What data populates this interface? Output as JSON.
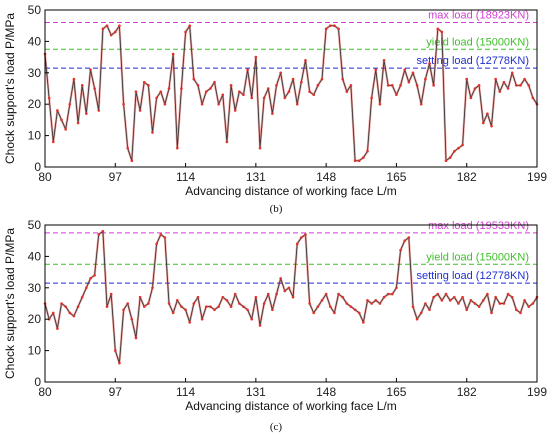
{
  "colors": {
    "series_line": "#3a3a3a",
    "series_marker": "#e0322b",
    "max_load": "#d23fd2",
    "yield_load": "#3fbf2a",
    "setting_load": "#1f2fd0"
  },
  "chart_data": [
    {
      "id": "b",
      "type": "line",
      "caption": "(b)",
      "xlabel": "Advancing distance of working face L/m",
      "ylabel": "Chock support's load   P/MPa",
      "xlim": [
        80,
        199
      ],
      "ylim": [
        0,
        50
      ],
      "xticks": [
        80,
        97,
        114,
        131,
        148,
        165,
        182,
        199
      ],
      "yticks": [
        0,
        10,
        20,
        30,
        40,
        50
      ],
      "reference_lines": [
        {
          "label": "max load (18923KN)",
          "value": 46,
          "color": "#d23fd2"
        },
        {
          "label": "yield load (15000KN)",
          "value": 37.5,
          "color": "#3fbf2a"
        },
        {
          "label": "setting load (12778KN)",
          "value": 31.5,
          "color": "#1f2fd0"
        }
      ],
      "series": [
        {
          "x": [
            80,
            81,
            82,
            83,
            84,
            85,
            86,
            87,
            88,
            89,
            90,
            91,
            92,
            93,
            94,
            95,
            96,
            97,
            98,
            99,
            100,
            101,
            102,
            103,
            104,
            105,
            106,
            107,
            108,
            109,
            110,
            111,
            112,
            113,
            114,
            115,
            116,
            117,
            118,
            119,
            120,
            121,
            122,
            123,
            124,
            125,
            126,
            127,
            128,
            129,
            130,
            131,
            132,
            133,
            134,
            135,
            136,
            137,
            138,
            139,
            140,
            141,
            142,
            143,
            144,
            145,
            146,
            147,
            148,
            149,
            150,
            151,
            152,
            153,
            154,
            155,
            156,
            157,
            158,
            159,
            160,
            161,
            162,
            163,
            164,
            165,
            166,
            167,
            168,
            169,
            170,
            171,
            172,
            173,
            174,
            175,
            176,
            177,
            178,
            179,
            180,
            181,
            182,
            183,
            184,
            185,
            186,
            187,
            188,
            189,
            190,
            191,
            192,
            193,
            194,
            195,
            196,
            197,
            198,
            199
          ],
          "y": [
            36,
            22,
            8,
            18,
            15,
            12,
            20,
            28,
            14,
            26,
            17,
            31,
            25,
            18,
            44,
            45,
            42,
            43,
            45,
            20,
            6,
            2,
            24,
            18,
            27,
            26,
            11,
            22,
            24,
            20,
            25,
            36,
            6,
            25,
            43,
            45,
            28,
            26,
            20,
            24,
            25,
            27,
            20,
            23,
            8,
            26,
            18,
            24,
            23,
            31,
            22,
            35,
            6,
            22,
            25,
            17,
            26,
            30,
            22,
            24,
            28,
            20,
            27,
            34,
            24,
            23,
            26,
            28,
            44,
            45,
            45,
            44,
            28,
            24,
            26,
            2,
            2,
            3,
            5,
            22,
            31,
            20,
            34,
            26,
            26,
            23,
            26,
            31,
            27,
            30,
            26,
            20,
            28,
            33,
            26,
            44,
            43,
            2,
            3,
            5,
            6,
            7,
            28,
            22,
            25,
            26,
            14,
            17,
            13,
            28,
            24,
            27,
            25,
            30,
            26,
            26,
            28,
            26,
            22,
            20
          ]
        }
      ]
    },
    {
      "id": "c",
      "type": "line",
      "caption": "(c)",
      "xlabel": "Advancing distance of working face L/m",
      "ylabel": "Chock support's load   P/MPa",
      "xlim": [
        80,
        199
      ],
      "ylim": [
        0,
        50
      ],
      "xticks": [
        80,
        97,
        114,
        131,
        148,
        165,
        182,
        199
      ],
      "yticks": [
        0,
        10,
        20,
        30,
        40,
        50
      ],
      "reference_lines": [
        {
          "label": "max load (19533KN)",
          "value": 47.5,
          "color": "#d23fd2"
        },
        {
          "label": "yield load (15000KN)",
          "value": 37.5,
          "color": "#3fbf2a"
        },
        {
          "label": "setting load (12778KN)",
          "value": 31.5,
          "color": "#1f2fd0"
        }
      ],
      "series": [
        {
          "x": [
            80,
            81,
            82,
            83,
            84,
            85,
            86,
            87,
            88,
            89,
            90,
            91,
            92,
            93,
            94,
            95,
            96,
            97,
            98,
            99,
            100,
            101,
            102,
            103,
            104,
            105,
            106,
            107,
            108,
            109,
            110,
            111,
            112,
            113,
            114,
            115,
            116,
            117,
            118,
            119,
            120,
            121,
            122,
            123,
            124,
            125,
            126,
            127,
            128,
            129,
            130,
            131,
            132,
            133,
            134,
            135,
            136,
            137,
            138,
            139,
            140,
            141,
            142,
            143,
            144,
            145,
            146,
            147,
            148,
            149,
            150,
            151,
            152,
            153,
            154,
            155,
            156,
            157,
            158,
            159,
            160,
            161,
            162,
            163,
            164,
            165,
            166,
            167,
            168,
            169,
            170,
            171,
            172,
            173,
            174,
            175,
            176,
            177,
            178,
            179,
            180,
            181,
            182,
            183,
            184,
            185,
            186,
            187,
            188,
            189,
            190,
            191,
            192,
            193,
            194,
            195,
            196,
            197,
            198,
            199
          ],
          "y": [
            25,
            20,
            22,
            17,
            25,
            24,
            22,
            21,
            24,
            27,
            30,
            33,
            34,
            47,
            48,
            24,
            28,
            10,
            6,
            23,
            25,
            20,
            14,
            27,
            24,
            25,
            30,
            44,
            47,
            46,
            25,
            22,
            26,
            24,
            23,
            19,
            25,
            27,
            20,
            24,
            24,
            23,
            24,
            27,
            26,
            24,
            28,
            25,
            24,
            23,
            20,
            27,
            18,
            25,
            28,
            23,
            28,
            33,
            29,
            30,
            27,
            44,
            46,
            47,
            25,
            22,
            24,
            26,
            28,
            24,
            22,
            28,
            27,
            25,
            24,
            23,
            22,
            19,
            26,
            25,
            26,
            25,
            27,
            28,
            28,
            30,
            42,
            45,
            46,
            24,
            20,
            22,
            25,
            23,
            27,
            28,
            26,
            28,
            26,
            27,
            25,
            27,
            23,
            26,
            25,
            24,
            26,
            28,
            22,
            27,
            25,
            25,
            28,
            27,
            23,
            22,
            26,
            24,
            25,
            27
          ]
        }
      ]
    }
  ]
}
